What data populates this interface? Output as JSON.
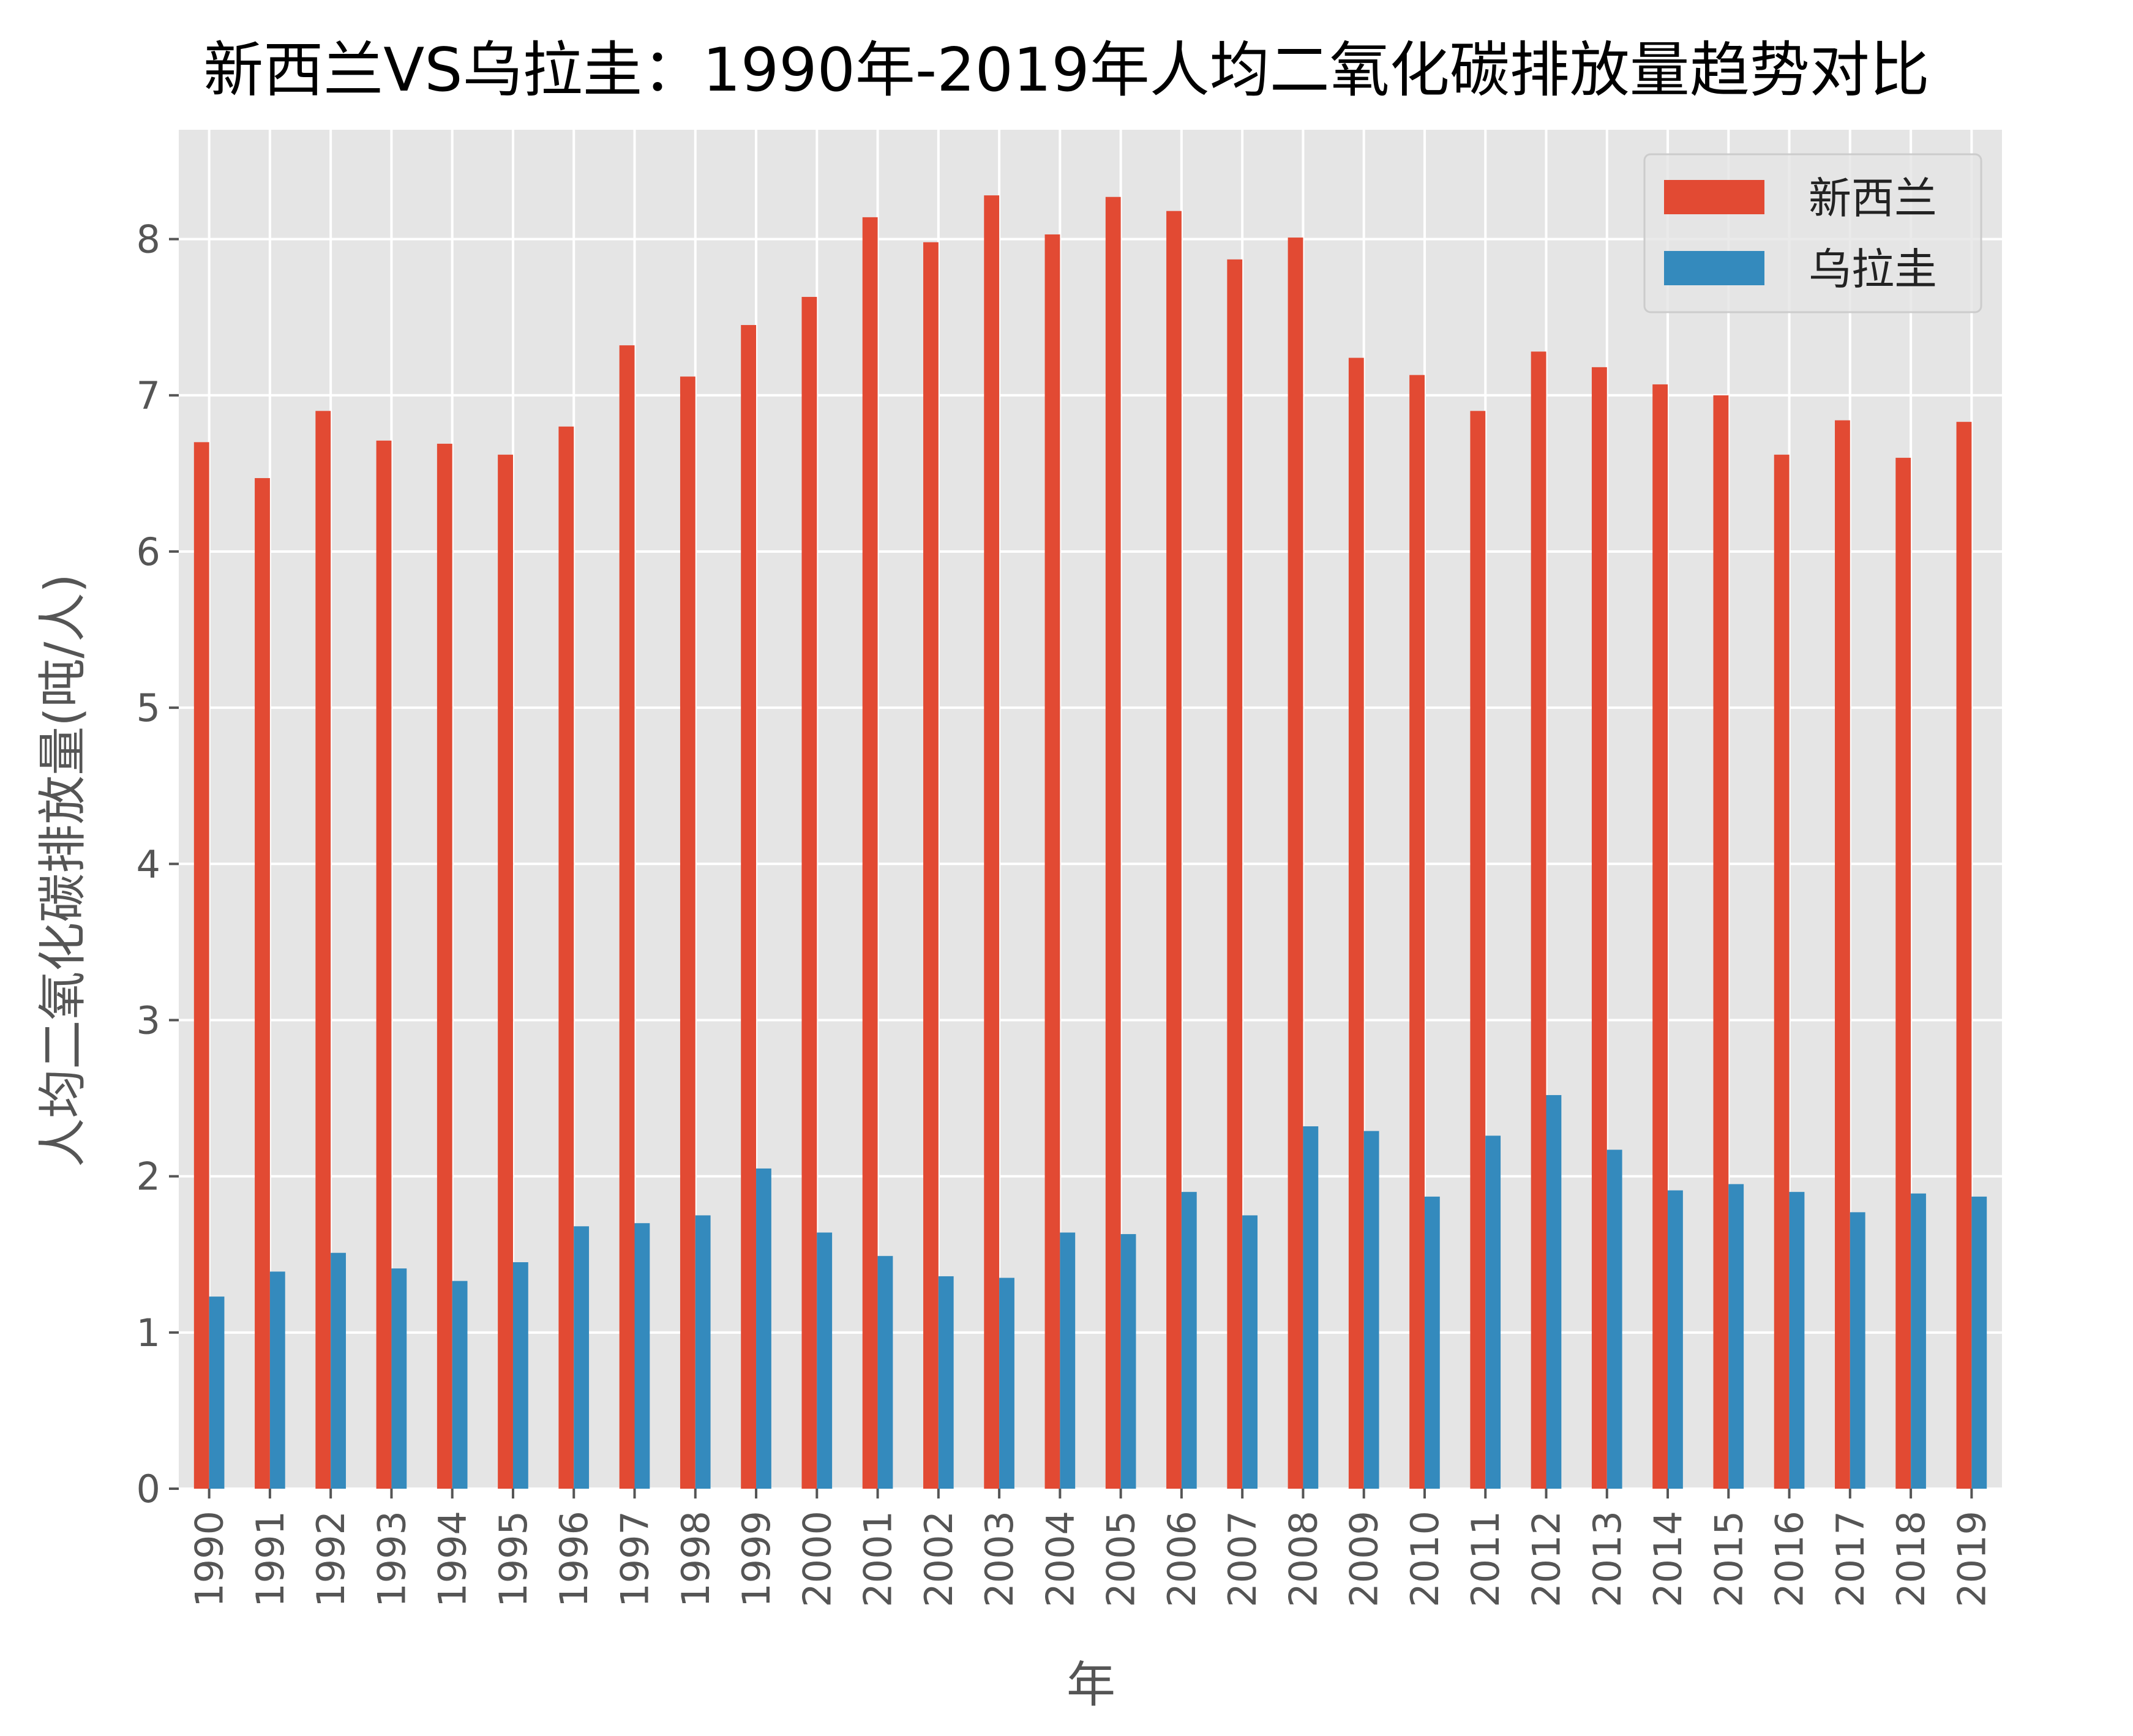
{
  "chart_data": {
    "type": "bar",
    "title": "新西兰VS乌拉圭：1990年-2019年人均二氧化碳排放量趋势对比",
    "xlabel": "年",
    "ylabel": "人均二氧化碳排放量(吨/人)",
    "ylim": [
      0,
      8.7
    ],
    "yticks": [
      0,
      1,
      2,
      3,
      4,
      5,
      6,
      7,
      8
    ],
    "grid": true,
    "legend_position": "top-right",
    "categories": [
      "1990",
      "1991",
      "1992",
      "1993",
      "1994",
      "1995",
      "1996",
      "1997",
      "1998",
      "1999",
      "2000",
      "2001",
      "2002",
      "2003",
      "2004",
      "2005",
      "2006",
      "2007",
      "2008",
      "2009",
      "2010",
      "2011",
      "2012",
      "2013",
      "2014",
      "2015",
      "2016",
      "2017",
      "2018",
      "2019"
    ],
    "series": [
      {
        "name": "新西兰",
        "color": "#E24A33",
        "values": [
          6.7,
          6.47,
          6.9,
          6.71,
          6.69,
          6.62,
          6.8,
          7.32,
          7.12,
          7.45,
          7.63,
          8.14,
          7.98,
          8.28,
          8.03,
          8.27,
          8.18,
          7.87,
          8.01,
          7.24,
          7.13,
          6.9,
          7.28,
          7.18,
          7.07,
          7.0,
          6.62,
          6.84,
          6.6,
          6.83
        ]
      },
      {
        "name": "乌拉圭",
        "color": "#348ABD",
        "values": [
          1.23,
          1.39,
          1.51,
          1.41,
          1.33,
          1.45,
          1.68,
          1.7,
          1.75,
          2.05,
          1.64,
          1.49,
          1.36,
          1.35,
          1.64,
          1.63,
          1.9,
          1.75,
          2.32,
          2.29,
          1.87,
          2.26,
          2.52,
          2.17,
          1.91,
          1.95,
          1.9,
          1.77,
          1.89,
          1.87
        ]
      }
    ]
  }
}
